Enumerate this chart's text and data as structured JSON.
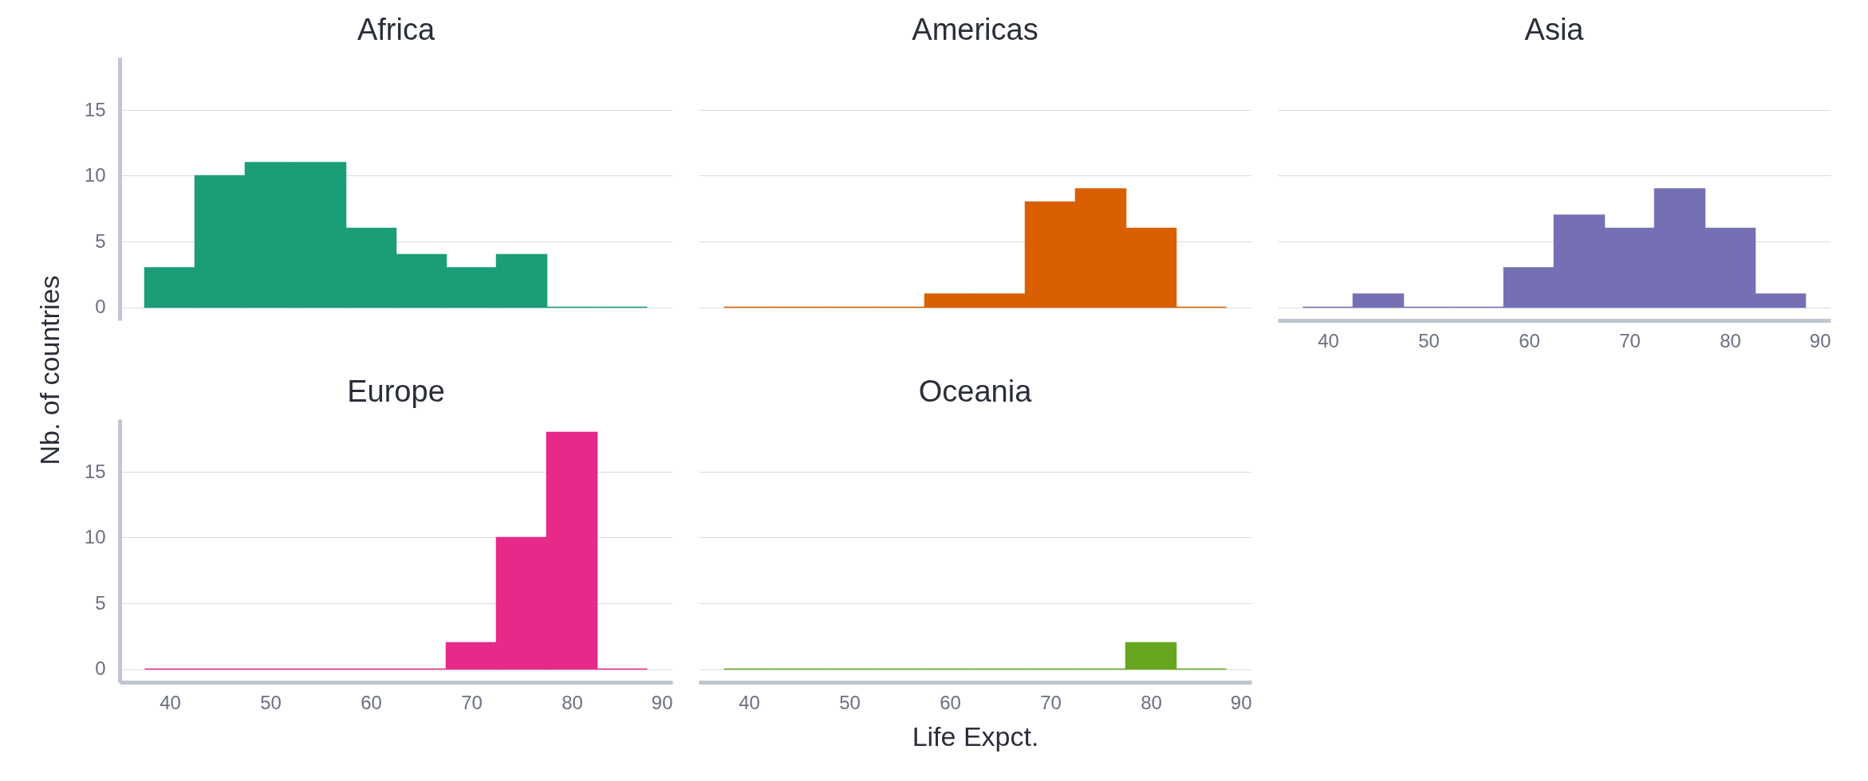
{
  "chart_data": [
    {
      "type": "histogram",
      "title": "Africa",
      "ylabel": "Nb. of countries",
      "bins": [
        37.5,
        42.5,
        47.5,
        52.5,
        57.5,
        62.5,
        67.5,
        72.5,
        77.5,
        82.5,
        87.5
      ],
      "values": [
        3,
        10,
        11,
        11,
        6,
        4,
        3,
        4,
        0,
        0
      ],
      "color": "#1b9e77",
      "xlim": [
        35,
        90
      ],
      "ylim": [
        -1,
        19
      ],
      "xticks": [
        40,
        50,
        60,
        70,
        80,
        90
      ],
      "yticks": [
        0,
        5,
        10,
        15
      ],
      "grid": "y",
      "tick_labels": "y"
    },
    {
      "type": "histogram",
      "title": "Americas",
      "bins": [
        37.5,
        42.5,
        47.5,
        52.5,
        57.5,
        62.5,
        67.5,
        72.5,
        77.5,
        82.5,
        87.5
      ],
      "values": [
        0,
        0,
        0,
        0,
        1,
        1,
        8,
        9,
        6,
        0
      ],
      "color": "#d95f02",
      "xlim": [
        35,
        90
      ],
      "xticks": [
        40,
        50,
        60,
        70,
        80,
        90
      ],
      "yticks": [
        0,
        5,
        10,
        15
      ],
      "grid": "y",
      "tick_labels": false
    },
    {
      "type": "histogram",
      "title": "Asia",
      "bins": [
        37.5,
        42.5,
        47.5,
        52.5,
        57.5,
        62.5,
        67.5,
        72.5,
        77.5,
        82.5,
        87.5
      ],
      "values": [
        0,
        1,
        0,
        0,
        3,
        7,
        6,
        9,
        6,
        1
      ],
      "color": "#7570b3",
      "xlim": [
        35,
        90
      ],
      "xticks": [
        40,
        50,
        60,
        70,
        80,
        90
      ],
      "yticks": [
        0,
        5,
        10,
        15
      ],
      "grid": "y",
      "tick_labels": "x"
    },
    {
      "type": "histogram",
      "title": "Europe",
      "bins": [
        37.5,
        42.5,
        47.5,
        52.5,
        57.5,
        62.5,
        67.5,
        72.5,
        77.5,
        82.5,
        87.5
      ],
      "values": [
        0,
        0,
        0,
        0,
        0,
        0,
        2,
        10,
        18,
        0
      ],
      "color": "#e7298a",
      "xlim": [
        35,
        90
      ],
      "ylim": [
        -1,
        19
      ],
      "xticks": [
        40,
        50,
        60,
        70,
        80,
        90
      ],
      "yticks": [
        0,
        5,
        10,
        15
      ],
      "grid": "y"
    },
    {
      "type": "histogram",
      "title": "Oceania",
      "xlabel": "Life Expct.",
      "bins": [
        37.5,
        42.5,
        47.5,
        52.5,
        57.5,
        62.5,
        67.5,
        72.5,
        77.5,
        82.5,
        87.5
      ],
      "values": [
        0,
        0,
        0,
        0,
        0,
        0,
        0,
        0,
        2,
        0
      ],
      "color": "#66a61e",
      "xlim": [
        35,
        90
      ],
      "xticks": [
        40,
        50,
        60,
        70,
        80,
        90
      ],
      "yticks": [
        0,
        5,
        10,
        15
      ],
      "grid": "y",
      "tick_labels": "x"
    }
  ]
}
